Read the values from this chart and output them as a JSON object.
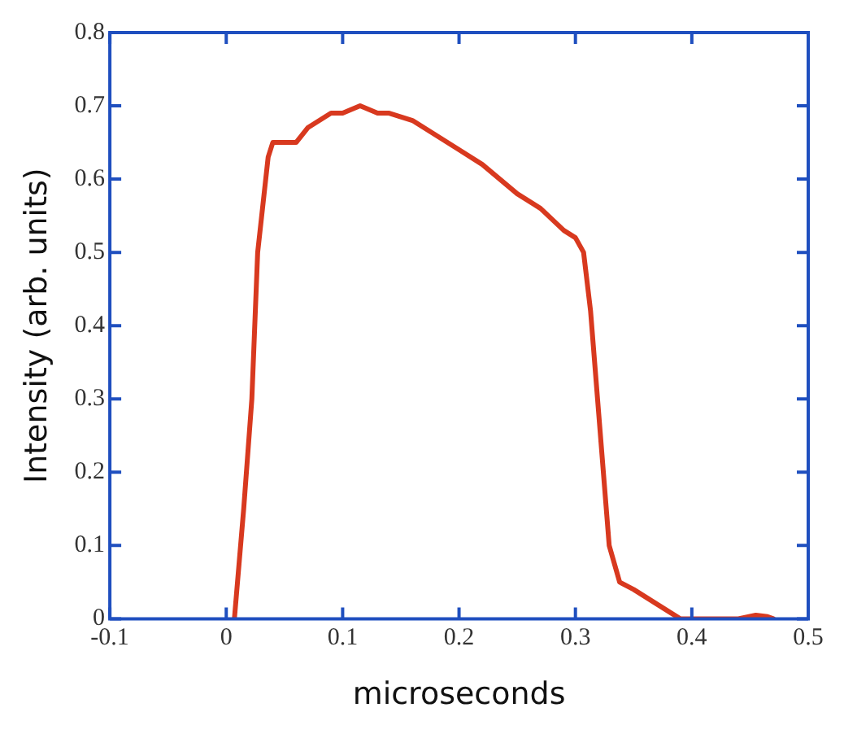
{
  "chart_data": {
    "type": "line",
    "xlabel": "microseconds",
    "ylabel": "Intensity (arb. units)",
    "series": [
      {
        "color": "#d8391f",
        "x": [
          0.007,
          0.015,
          0.022,
          0.027,
          0.036,
          0.04,
          0.05,
          0.06,
          0.07,
          0.08,
          0.09,
          0.1,
          0.115,
          0.13,
          0.14,
          0.16,
          0.18,
          0.2,
          0.22,
          0.25,
          0.27,
          0.29,
          0.3,
          0.307,
          0.313,
          0.319,
          0.325,
          0.329,
          0.338,
          0.35,
          0.36,
          0.37,
          0.38,
          0.39,
          0.4,
          0.42,
          0.44,
          0.455,
          0.465,
          0.47
        ],
        "values": [
          0,
          0.15,
          0.3,
          0.5,
          0.63,
          0.65,
          0.65,
          0.65,
          0.67,
          0.68,
          0.69,
          0.69,
          0.7,
          0.69,
          0.69,
          0.68,
          0.66,
          0.64,
          0.62,
          0.58,
          0.56,
          0.53,
          0.52,
          0.5,
          0.42,
          0.3,
          0.18,
          0.1,
          0.05,
          0.04,
          0.03,
          0.02,
          0.01,
          0,
          0,
          0,
          0,
          0.005,
          0.003,
          0
        ]
      }
    ],
    "xlim": [
      -0.1,
      0.5
    ],
    "xticks": [
      -0.1,
      0,
      0.1,
      0.2,
      0.3,
      0.4,
      0.5
    ],
    "ylim": [
      0,
      0.8
    ],
    "yticks": [
      0,
      0.1,
      0.2,
      0.3,
      0.4,
      0.5,
      0.6,
      0.7,
      0.8
    ],
    "grid": false,
    "legend": false,
    "marker": "none",
    "line_style": "solid"
  }
}
